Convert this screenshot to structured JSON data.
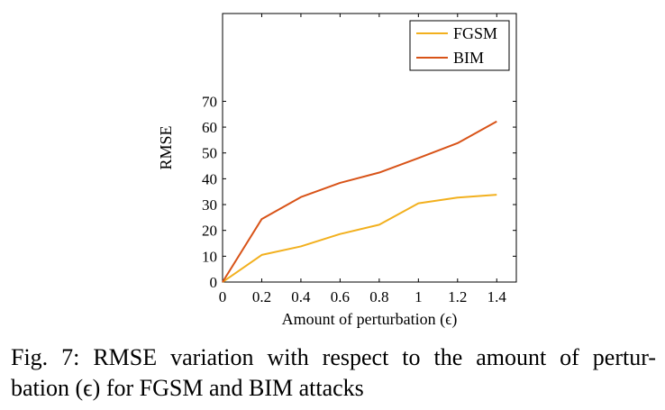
{
  "chart_data": {
    "type": "line",
    "xlabel": "Amount of perturbation (ϵ)",
    "ylabel": "RMSE",
    "xlim": [
      0,
      1.5
    ],
    "ylim": [
      0,
      104
    ],
    "xticks": [
      0,
      0.2,
      0.4,
      0.6,
      0.8,
      1,
      1.2,
      1.4
    ],
    "xtick_labels": [
      "0",
      "0.2",
      "0.4",
      "0.6",
      "0.8",
      "1",
      "1.2",
      "1.4"
    ],
    "yticks": [
      0,
      10,
      20,
      30,
      40,
      50,
      60,
      70
    ],
    "ytick_labels": [
      "0",
      "10",
      "20",
      "30",
      "40",
      "50",
      "60",
      "70"
    ],
    "grid": false,
    "legend_position": "top-right",
    "series": [
      {
        "name": "FGSM",
        "color": "#f2b01e",
        "x": [
          0,
          0.2,
          0.4,
          0.6,
          0.8,
          1.0,
          1.2,
          1.4
        ],
        "y": [
          0,
          10.5,
          13.8,
          18.6,
          22.2,
          30.5,
          32.7,
          33.8
        ]
      },
      {
        "name": "BIM",
        "color": "#d85318",
        "x": [
          0,
          0.2,
          0.4,
          0.6,
          0.8,
          1.0,
          1.2,
          1.4
        ],
        "y": [
          0,
          24.4,
          32.9,
          38.4,
          42.4,
          48.0,
          53.8,
          62.2
        ]
      }
    ]
  },
  "caption": {
    "line1": "Fig. 7: RMSE variation with respect to the amount of pertur-",
    "line2": "bation (ϵ) for FGSM and BIM attacks"
  }
}
